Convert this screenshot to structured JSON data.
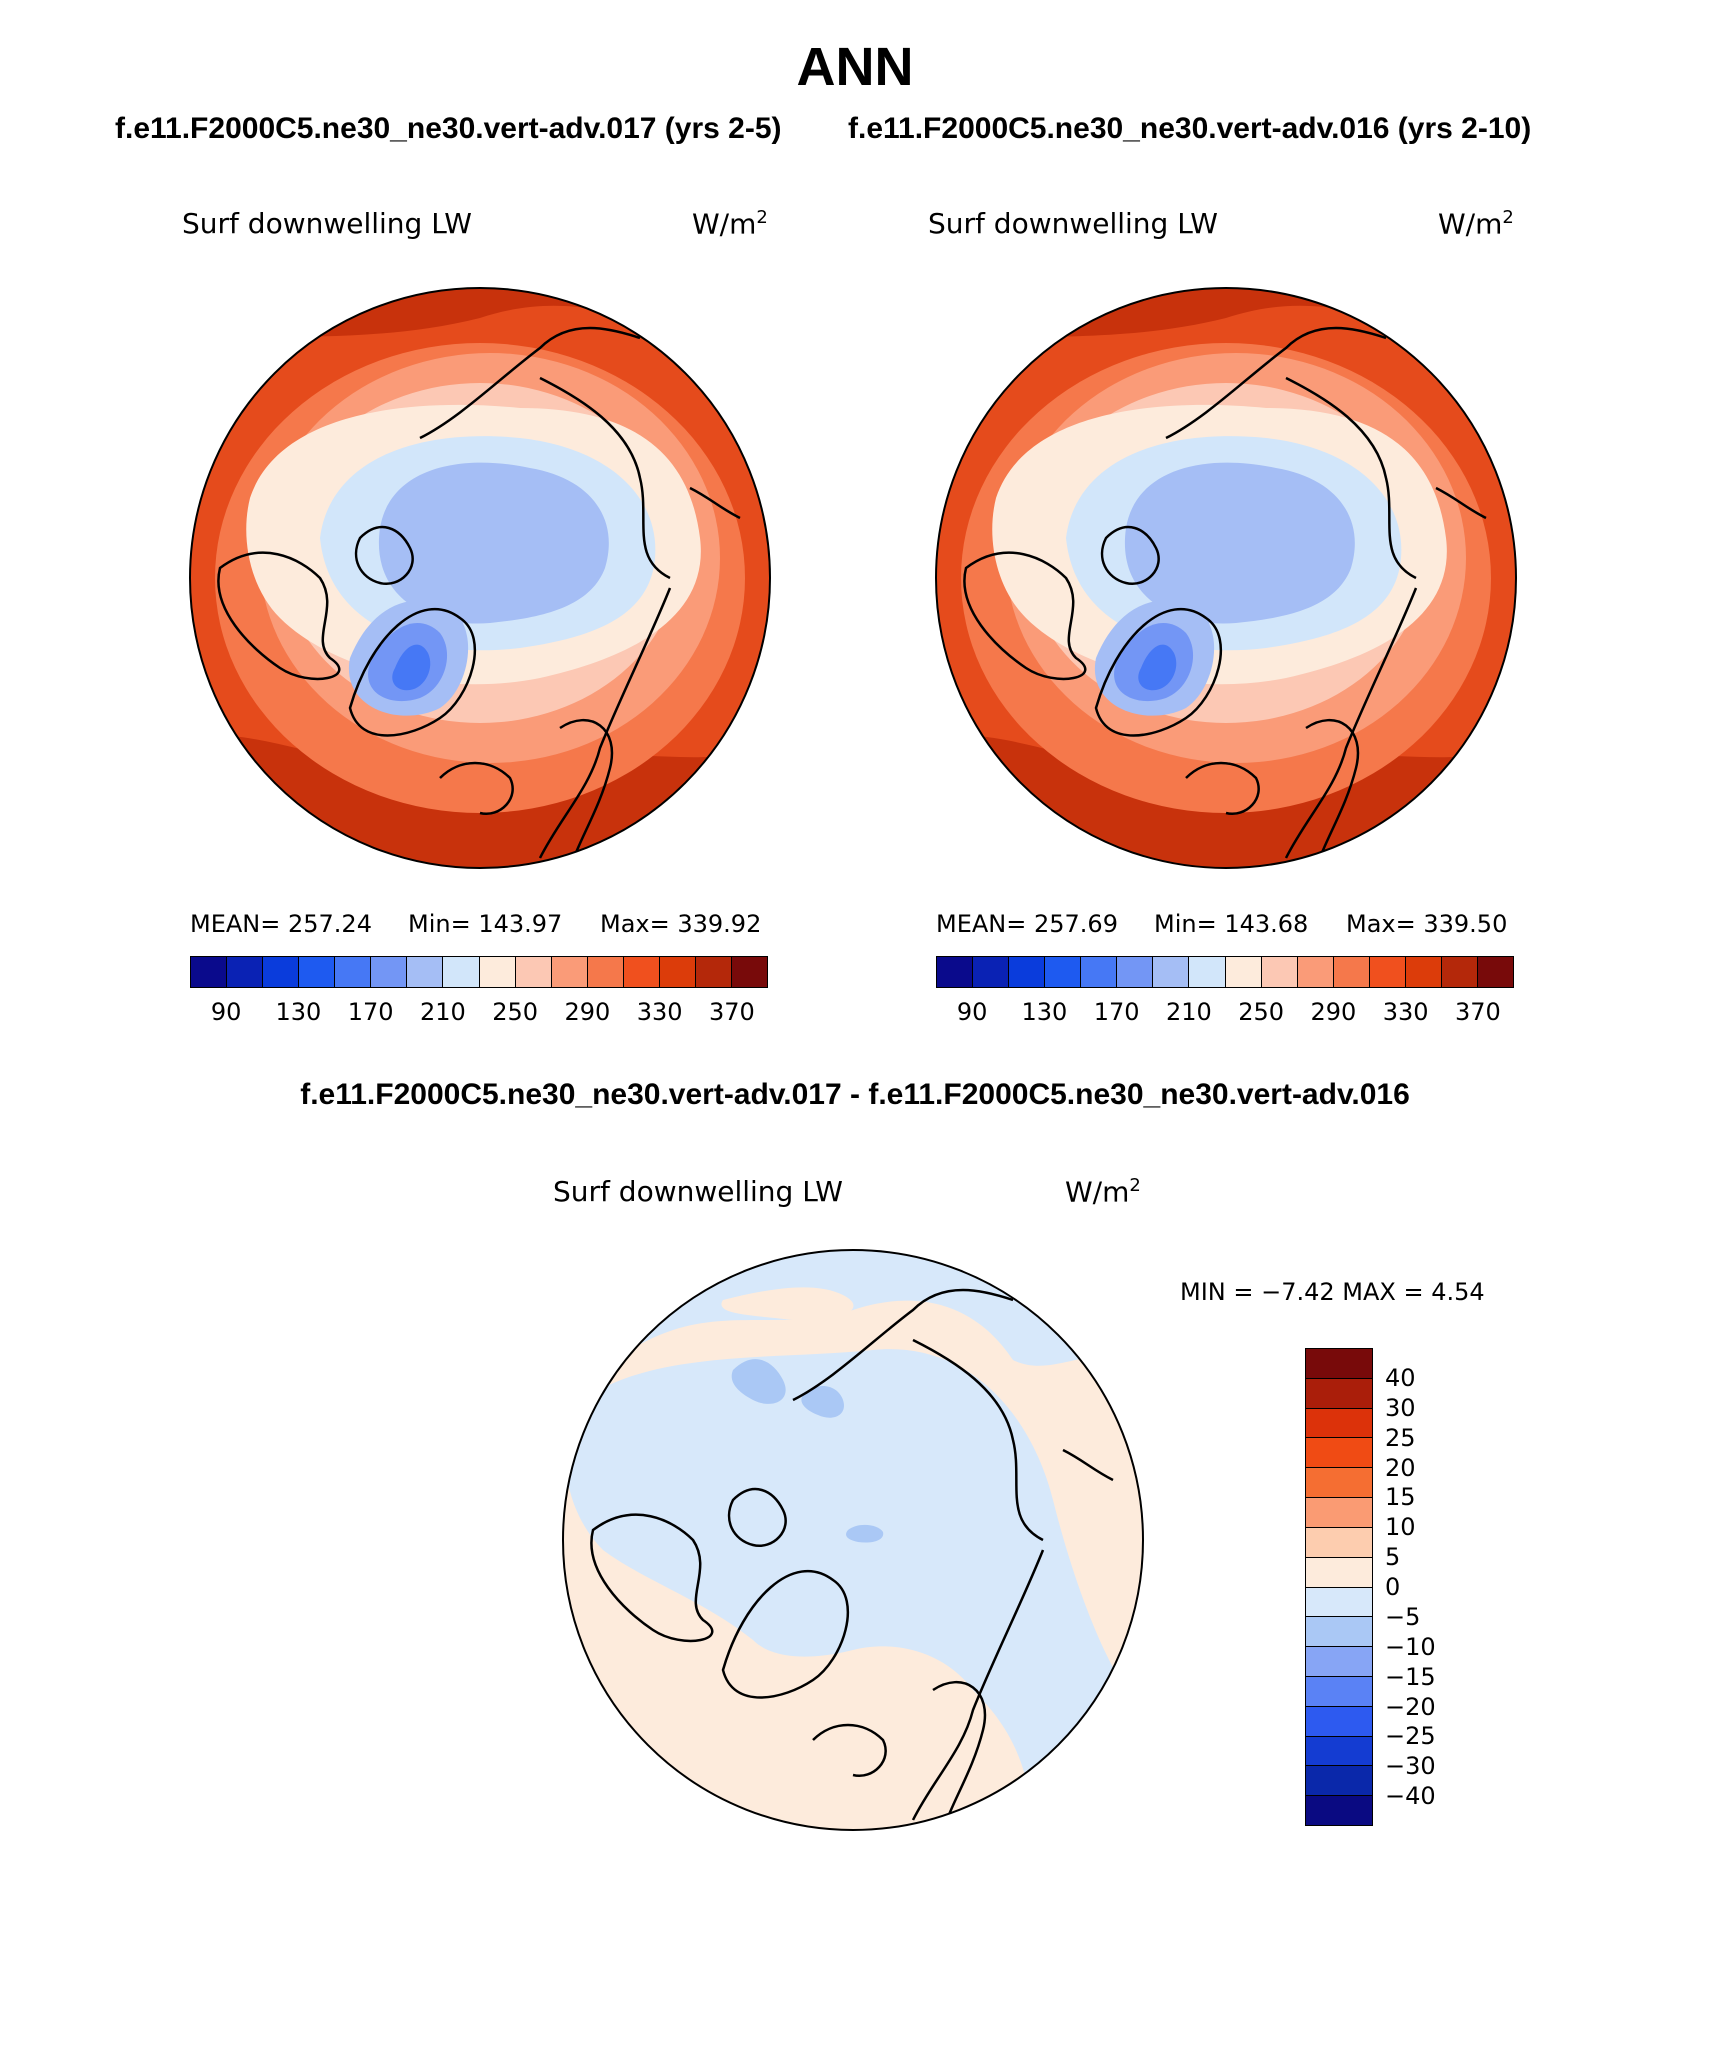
{
  "title": "ANN",
  "case1_title": "f.e11.F2000C5.ne30_ne30.vert-adv.017 (yrs 2-5)",
  "case2_title": "f.e11.F2000C5.ne30_ne30.vert-adv.016 (yrs 2-10)",
  "diff_title": "f.e11.F2000C5.ne30_ne30.vert-adv.017 - f.e11.F2000C5.ne30_ne30.vert-adv.016",
  "panels": [
    {
      "variable": "Surf downwelling LW",
      "units_base": "W/m",
      "units_exp": "2",
      "mean_label": "MEAN= 257.24",
      "min_label": "Min= 143.97",
      "max_label": "Max= 339.92",
      "mean": 257.24,
      "min": 143.97,
      "max": 339.92
    },
    {
      "variable": "Surf downwelling LW",
      "units_base": "W/m",
      "units_exp": "2",
      "mean_label": "MEAN= 257.69",
      "min_label": "Min= 143.68",
      "max_label": "Max= 339.50",
      "mean": 257.69,
      "min": 143.68,
      "max": 339.5
    }
  ],
  "diff_panel": {
    "variable": "Surf downwelling LW",
    "units_base": "W/m",
    "units_exp": "2",
    "minmax_label": "MIN =   −7.42  MAX =    4.54",
    "min": -7.42,
    "max": 4.54
  },
  "colorbar_abs": {
    "colors": [
      "#0a0a8c",
      "#0a22b4",
      "#0a3cdc",
      "#1e5af0",
      "#4678f5",
      "#7396f5",
      "#a5bef5",
      "#d2e6fa",
      "#fdebdc",
      "#fcc8b4",
      "#fa9b78",
      "#f5784b",
      "#f0501e",
      "#dc3c0a",
      "#b4280a",
      "#780a0a"
    ],
    "ticks": [
      "90",
      "130",
      "170",
      "210",
      "250",
      "290",
      "330",
      "370"
    ]
  },
  "colorbar_diff": {
    "colors": [
      "#780a0a",
      "#aa1e0a",
      "#dc320a",
      "#f04b14",
      "#f56e32",
      "#fa9b73",
      "#fdcdaf",
      "#fdebdc",
      "#d7e8fa",
      "#aac8f5",
      "#87a5f5",
      "#5a82f5",
      "#2d5af0",
      "#143cd2",
      "#0a28aa",
      "#0a0a82"
    ],
    "ticks": [
      "40",
      "30",
      "25",
      "20",
      "15",
      "10",
      "5",
      "0",
      "−5",
      "−10",
      "−15",
      "−20",
      "−25",
      "−30",
      "−40"
    ]
  },
  "map_colors": {
    "ocean_land_coast": "#000000",
    "abs_outer": "#e54b1c",
    "abs_darkest": "#c8320c",
    "abs_orange": "#f5784b",
    "abs_light_orange": "#fa9b78",
    "abs_peach": "#fcc8b4",
    "abs_cream": "#fdebdc",
    "abs_pale_blue": "#d2e6fa",
    "abs_light_blue": "#a5bef5",
    "abs_mid_blue": "#7396f5",
    "abs_blue": "#4678f5",
    "abs_dark_blue": "#1e5af0",
    "diff_pos": "#fdebdc",
    "diff_neg": "#d7e8fa",
    "diff_neg2": "#aac8f5"
  }
}
